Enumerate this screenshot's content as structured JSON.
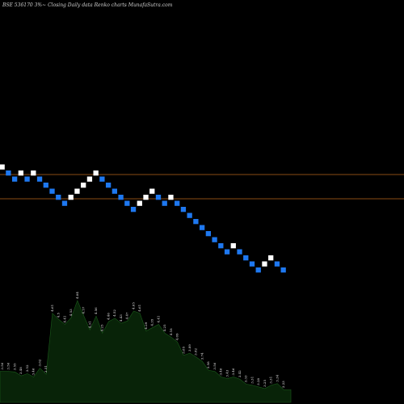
{
  "title": "BSE 536170  3%~  Closing Daily data  Renko  charts MunafaSutra.com",
  "colors": {
    "background": "#000000",
    "up_brick": "#ffffff",
    "down_brick": "#1e78f0",
    "level_line": "#8a4b14",
    "volume_fill": "#082308",
    "volume_stroke": "#1a5a1a"
  },
  "chart_data": {
    "type": "renko",
    "directions": [
      "up",
      "down",
      "down",
      "up",
      "down",
      "up",
      "down",
      "down",
      "down",
      "down",
      "down",
      "up",
      "up",
      "up",
      "up",
      "up",
      "down",
      "down",
      "down",
      "down",
      "down",
      "down",
      "up",
      "up",
      "up",
      "down",
      "down",
      "up",
      "down",
      "down",
      "down",
      "down",
      "down",
      "down",
      "down",
      "down",
      "down",
      "up",
      "down",
      "down",
      "down",
      "down",
      "up",
      "up",
      "down",
      "down"
    ],
    "levels": [
      "upper",
      "lower"
    ],
    "volume": {
      "values": [
        3.56,
        3.56,
        3.56,
        3.56,
        3.56,
        3.56,
        3.56,
        3.56,
        3.56,
        3.56,
        3.56,
        3.56,
        3.56,
        3.56,
        3.56,
        3.56,
        3.56,
        3.56,
        3.56,
        3.56,
        3.56,
        3.56,
        3.56,
        3.56,
        3.56,
        3.56,
        3.56,
        3.56,
        3.56,
        3.56,
        3.56,
        3.56,
        3.56,
        3.56,
        3.56,
        3.56,
        3.56,
        3.56,
        3.56,
        3.56,
        3.56,
        3.56,
        3.56,
        3.56,
        3.56,
        3.56
      ],
      "labels": [
        "3.56",
        "3.56",
        "3.55",
        "3.48",
        "3.52",
        "3.46",
        "3.62",
        "3.51",
        "4.61",
        "4.5",
        "4.41",
        "4.53",
        "4.84",
        "4.57",
        "4.31",
        "4.56",
        "4.25",
        "4.46",
        "4.52",
        "4.43",
        "4.47",
        "4.65",
        "4.61",
        "4.29",
        "4.35",
        "4.41",
        "4.25",
        "4.18",
        "4.09",
        "3.85",
        "3.89",
        "3.82",
        "3.74",
        "3.58",
        "3.56",
        "3.46",
        "3.43",
        "3.46",
        "3.42",
        "3.33",
        "3.31",
        "3.28",
        "3.25",
        "3.31",
        "3.34",
        "3.23"
      ]
    }
  }
}
